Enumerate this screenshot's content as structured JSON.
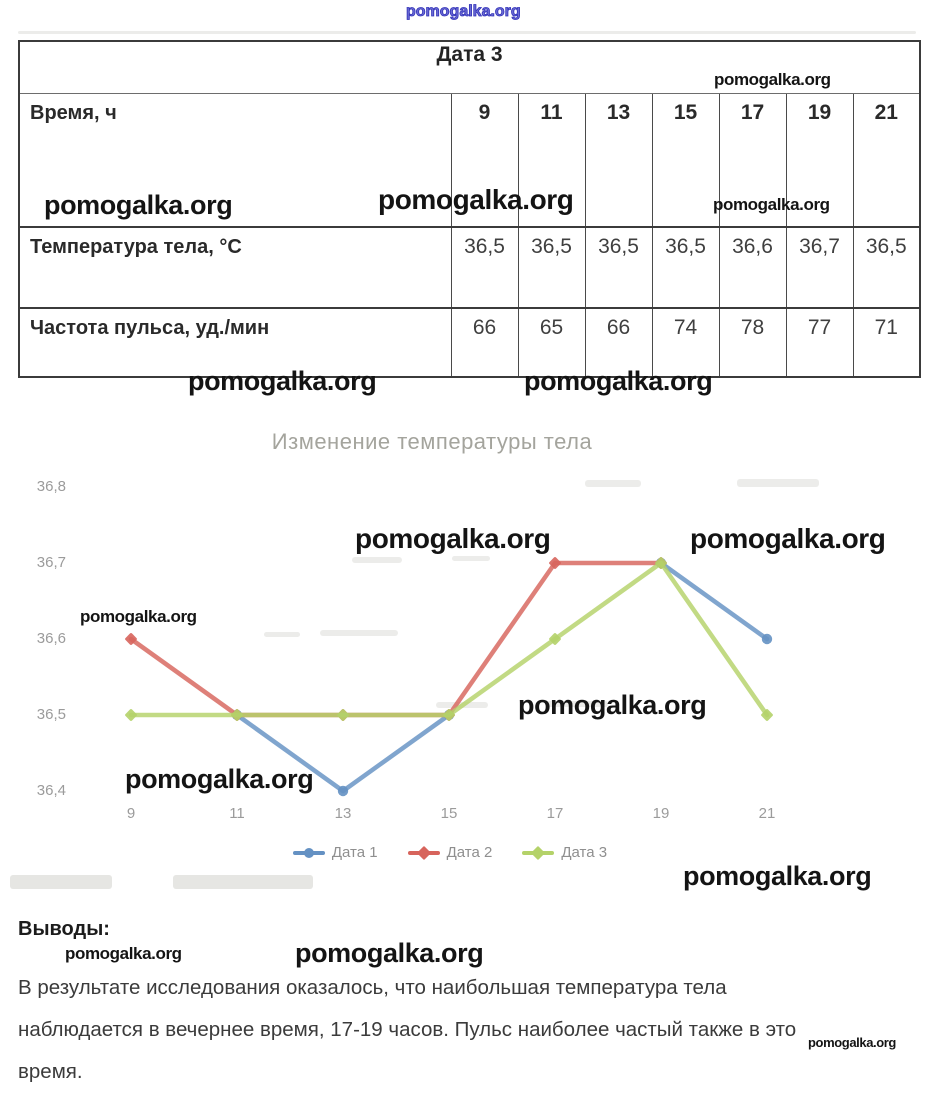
{
  "watermark": {
    "text": "pomogalka.org"
  },
  "table": {
    "title": "Дата 3",
    "rows": [
      {
        "label": "Время, ч",
        "values": [
          "9",
          "11",
          "13",
          "15",
          "17",
          "19",
          "21"
        ]
      },
      {
        "label": "Температура тела, °С",
        "values": [
          "36,5",
          "36,5",
          "36,5",
          "36,5",
          "36,6",
          "36,7",
          "36,5"
        ]
      },
      {
        "label": "Частота пульса, уд./мин",
        "values": [
          "66",
          "65",
          "66",
          "74",
          "78",
          "77",
          "71"
        ]
      }
    ]
  },
  "chart_data": {
    "type": "line",
    "title": "Изменение температуры тела",
    "xlabel": "",
    "ylabel": "",
    "x": [
      9,
      11,
      13,
      15,
      17,
      19,
      21
    ],
    "x_tick_labels": [
      "9",
      "11",
      "13",
      "15",
      "17",
      "19",
      "21"
    ],
    "y_tick_labels": [
      "36,8",
      "36,7",
      "36,6",
      "36,5",
      "36,4"
    ],
    "ylim": [
      36.4,
      36.8
    ],
    "grid": false,
    "legend_position": "bottom",
    "series": [
      {
        "name": "Дата 1",
        "color": "#6491c3",
        "marker": "circle",
        "values": [
          null,
          36.5,
          36.4,
          36.5,
          null,
          36.7,
          36.6
        ]
      },
      {
        "name": "Дата 2",
        "color": "#d7645c",
        "marker": "diamond",
        "values": [
          36.6,
          36.5,
          36.5,
          36.5,
          36.7,
          36.7,
          null
        ]
      },
      {
        "name": "Дата 3",
        "color": "#b4d269",
        "marker": "diamond",
        "values": [
          36.5,
          36.5,
          36.5,
          36.5,
          36.6,
          36.7,
          36.5
        ]
      }
    ]
  },
  "conclusions": {
    "heading": "Выводы:",
    "lines": [
      "В результате исследования оказалось, что наибольшая температура тела",
      "наблюдается в вечернее время, 17-19 часов. Пульс наиболее частый также в это",
      "время."
    ]
  }
}
